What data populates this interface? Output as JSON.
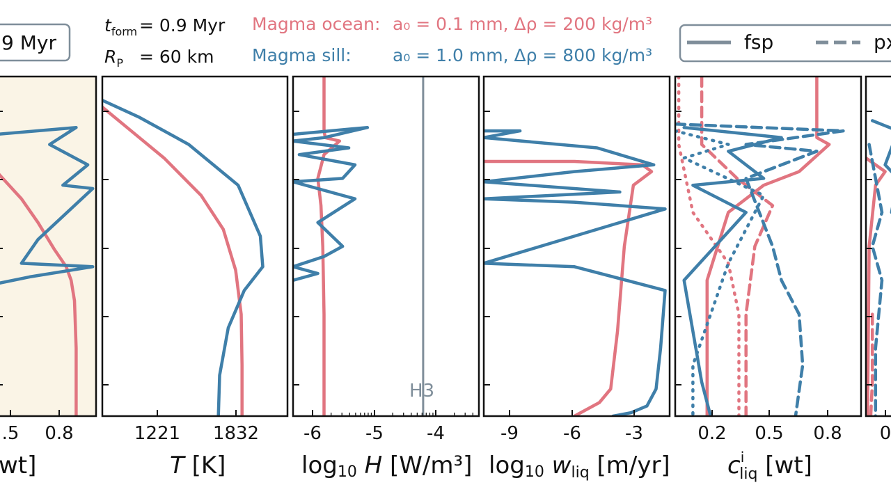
{
  "colors": {
    "ocean": "#e17580",
    "sill": "#3f7fa9",
    "neutral": "#7f8e9a",
    "shade": "#faf4e6",
    "axis": "#111111"
  },
  "header": {
    "time_badge": "9 Myr",
    "t_form_sym": "t",
    "t_form_sub": "form",
    "t_form_val": "= 0.9 Myr",
    "r_p_sym": "R",
    "r_p_sub": "P",
    "r_p_val": "= 60 km",
    "ocean_label": "Magma ocean:",
    "ocean_params": "a₀ =  0.1 mm, Δρ = 200 kg/m³",
    "sill_label": "Magma sill:",
    "sill_params": "a₀ =  1.0 mm, Δρ = 800 kg/m³",
    "legend": {
      "solid": "fsp",
      "dashed": "px"
    }
  },
  "panels": [
    {
      "id": "p0",
      "xticks": [
        ".5",
        "0.8"
      ],
      "xlabel": "wt]"
    },
    {
      "id": "p1",
      "xticks": [
        "1221",
        "1832"
      ],
      "xlabel_sym": "T",
      "xlabel_rest": " [K]"
    },
    {
      "id": "p2",
      "xticks": [
        "-6",
        "-5",
        "-4"
      ],
      "xlabel_pre": "log",
      "xlabel_sub": "10",
      "xlabel_sym": " H",
      "xlabel_rest": " [W/m³]",
      "annotation": "H3"
    },
    {
      "id": "p3",
      "xticks": [
        "-9",
        "-6",
        "-3"
      ],
      "xlabel_pre": "log",
      "xlabel_sub": "10",
      "xlabel_sym": " w",
      "xlabel_symsub": "liq",
      "xlabel_rest": " [m/yr]"
    },
    {
      "id": "p4",
      "xticks": [
        "0.2",
        "0.5",
        "0.8"
      ],
      "xlabel_sym": "c",
      "xlabel_sup": "i",
      "xlabel_symsub": "liq",
      "xlabel_rest": " [wt]"
    },
    {
      "id": "p5",
      "xticks": [
        "0"
      ]
    }
  ],
  "chart_data": [
    {
      "type": "line",
      "panel": "p0",
      "xlim": [
        0.3,
        0.9
      ],
      "ylim": [
        0,
        1
      ],
      "shaded": true,
      "series": [
        {
          "key": "ocean",
          "style": "solid",
          "x": [
            0.3,
            0.45,
            0.55,
            0.65,
            0.72,
            0.75,
            0.77,
            0.78,
            0.78
          ],
          "y": [
            0.72,
            0.64,
            0.57,
            0.49,
            0.44,
            0.4,
            0.34,
            0.2,
            0.0
          ]
        },
        {
          "key": "sill",
          "style": "solid",
          "x": [
            0.3,
            0.78,
            0.62,
            0.85,
            0.7,
            0.88,
            0.55,
            0.45,
            0.88,
            0.5,
            0.3
          ],
          "y": [
            0.83,
            0.85,
            0.8,
            0.74,
            0.68,
            0.67,
            0.52,
            0.45,
            0.44,
            0.41,
            0.39
          ]
        }
      ]
    },
    {
      "type": "line",
      "panel": "p1",
      "xlim": [
        700,
        2200
      ],
      "ylim": [
        0,
        1
      ],
      "series": [
        {
          "key": "ocean",
          "style": "solid",
          "x": [
            700,
            900,
            1200,
            1500,
            1680,
            1780,
            1825,
            1832,
            1832
          ],
          "y": [
            0.91,
            0.85,
            0.76,
            0.65,
            0.55,
            0.43,
            0.3,
            0.15,
            0.0
          ]
        },
        {
          "key": "sill",
          "style": "solid",
          "x": [
            700,
            1000,
            1400,
            1800,
            1980,
            2000,
            1850,
            1720,
            1650,
            1640
          ],
          "y": [
            0.93,
            0.88,
            0.8,
            0.68,
            0.53,
            0.44,
            0.37,
            0.26,
            0.12,
            0.0
          ]
        }
      ]
    },
    {
      "type": "line",
      "panel": "p2",
      "xlim": [
        -6.3,
        -3.3
      ],
      "ylim": [
        0,
        1
      ],
      "series": [
        {
          "key": "ocean",
          "style": "solid",
          "x": [
            -5.8,
            -5.8,
            -5.78,
            -5.55,
            -5.8,
            -5.9,
            -5.85,
            -5.82,
            -5.8,
            -5.8,
            -5.8
          ],
          "y": [
            1.0,
            0.84,
            0.82,
            0.81,
            0.77,
            0.7,
            0.62,
            0.5,
            0.3,
            0.1,
            0.0
          ]
        },
        {
          "key": "sill",
          "style": "solid",
          "x": [
            -6.3,
            -5.1,
            -5.8,
            -6.3,
            -5.4,
            -6.2,
            -5.3,
            -5.5,
            -6.3,
            -5.3,
            -5.9,
            -5.5,
            -5.8,
            -6.3,
            -5.9,
            -6.3
          ],
          "y": [
            0.83,
            0.85,
            0.82,
            0.81,
            0.79,
            0.77,
            0.74,
            0.7,
            0.69,
            0.64,
            0.57,
            0.5,
            0.47,
            0.44,
            0.42,
            0.4
          ]
        },
        {
          "key": "neutral",
          "style": "solid",
          "x": [
            -4.2,
            -4.2
          ],
          "y": [
            1.0,
            0.0
          ]
        }
      ]
    },
    {
      "type": "line",
      "panel": "p3",
      "xlim": [
        -10,
        -1.8
      ],
      "ylim": [
        0,
        1
      ],
      "series": [
        {
          "key": "ocean",
          "style": "solid",
          "x": [
            -10,
            -6,
            -3.0,
            -2.6,
            -3.4,
            -3.8,
            -4.1,
            -4.4,
            -4.9,
            -6.0
          ],
          "y": [
            0.75,
            0.75,
            0.74,
            0.72,
            0.68,
            0.5,
            0.25,
            0.08,
            0.04,
            0.0
          ]
        },
        {
          "key": "sill",
          "style": "solid",
          "x": [
            -10,
            -8.4,
            -10,
            -5,
            -2.5,
            -6,
            -10,
            -4,
            -10,
            -6,
            -2,
            -10,
            -6,
            -2.0,
            -2.2,
            -2.4,
            -2.8,
            -3.5,
            -4.3
          ],
          "y": [
            0.84,
            0.84,
            0.82,
            0.79,
            0.74,
            0.72,
            0.69,
            0.66,
            0.64,
            0.63,
            0.61,
            0.45,
            0.44,
            0.37,
            0.2,
            0.08,
            0.03,
            0.01,
            0.0
          ]
        }
      ]
    },
    {
      "type": "line",
      "panel": "p4",
      "xlim": [
        0.0,
        1.05
      ],
      "ylim": [
        0,
        1
      ],
      "series": [
        {
          "key": "ocean",
          "style": "solid",
          "x": [
            0.8,
            0.8,
            0.87,
            0.7,
            0.5,
            0.3,
            0.18,
            0.18
          ],
          "y": [
            1.0,
            0.82,
            0.8,
            0.72,
            0.68,
            0.6,
            0.4,
            0.0
          ]
        },
        {
          "key": "ocean",
          "style": "dashed",
          "x": [
            0.15,
            0.15,
            0.35,
            0.55,
            0.45,
            0.4,
            0.4
          ],
          "y": [
            1.0,
            0.8,
            0.7,
            0.62,
            0.5,
            0.3,
            0.0
          ]
        },
        {
          "key": "ocean",
          "style": "dotted",
          "x": [
            0.02,
            0.02,
            0.1,
            0.3,
            0.36,
            0.36
          ],
          "y": [
            1.0,
            0.8,
            0.6,
            0.45,
            0.3,
            0.0
          ]
        },
        {
          "key": "sill",
          "style": "solid",
          "x": [
            0.05,
            0.6,
            0.3,
            0.5,
            0.1,
            0.4,
            0.05,
            0.1,
            0.15,
            0.2
          ],
          "y": [
            0.85,
            0.82,
            0.78,
            0.7,
            0.68,
            0.6,
            0.4,
            0.25,
            0.1,
            0.0
          ]
        },
        {
          "key": "sill",
          "style": "dashed",
          "x": [
            0.0,
            0.95,
            0.4,
            0.8,
            0.4,
            0.55,
            0.6,
            0.7,
            0.72,
            0.68
          ],
          "y": [
            0.86,
            0.84,
            0.8,
            0.78,
            0.7,
            0.5,
            0.4,
            0.3,
            0.15,
            0.0
          ]
        },
        {
          "key": "sill",
          "style": "dotted",
          "x": [
            0.0,
            0.3,
            0.05,
            0.5,
            0.3,
            0.2,
            0.1,
            0.1
          ],
          "y": [
            0.84,
            0.8,
            0.76,
            0.65,
            0.45,
            0.3,
            0.15,
            0.0
          ]
        }
      ]
    },
    {
      "type": "line",
      "panel": "p5",
      "xlim": [
        0,
        1
      ],
      "ylim": [
        0,
        1
      ],
      "series": [
        {
          "key": "ocean",
          "style": "solid",
          "x": [
            0.0,
            0.6,
            0.3,
            0.1,
            0.05
          ],
          "y": [
            0.76,
            0.72,
            0.68,
            0.5,
            0.0
          ]
        },
        {
          "key": "sill",
          "style": "solid",
          "x": [
            0.2,
            1.0,
            0.6,
            1.0,
            0.8
          ],
          "y": [
            0.87,
            0.84,
            0.74,
            0.7,
            0.6
          ]
        },
        {
          "key": "sill",
          "style": "dashed",
          "x": [
            0.1,
            0.5,
            0.2,
            0.5,
            0.3,
            0.3
          ],
          "y": [
            0.8,
            0.6,
            0.5,
            0.4,
            0.2,
            0.0
          ]
        },
        {
          "key": "ocean",
          "style": "dashed",
          "x": [
            0.2,
            0.2,
            0.15
          ],
          "y": [
            0.3,
            0.1,
            0.0
          ]
        }
      ]
    }
  ]
}
